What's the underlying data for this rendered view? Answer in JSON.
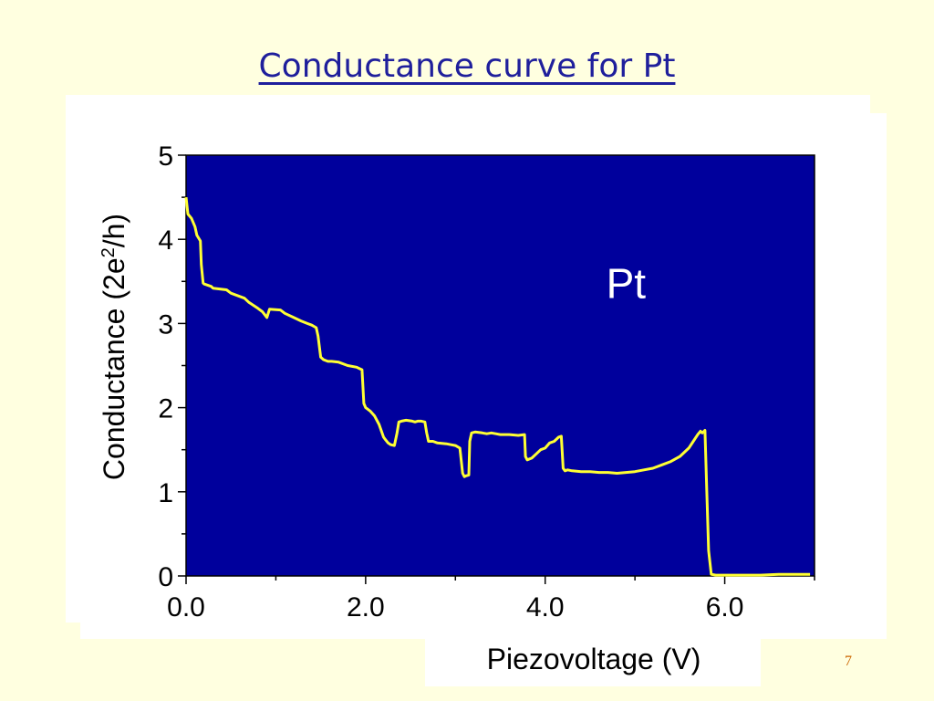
{
  "slide": {
    "title": "Conductance curve for Pt",
    "page_number": "7"
  },
  "colors": {
    "background": "#ffffe0",
    "title": "#1f1f9c",
    "plot_area": "#00009c",
    "curve": "#ffff33",
    "page_number": "#cc6600"
  },
  "chart_data": {
    "type": "line",
    "title": "",
    "xlabel": "Piezovoltage (V)",
    "ylabel_parts": [
      "Conductance (2e",
      "2",
      "/h)"
    ],
    "xlim": [
      0,
      7
    ],
    "ylim": [
      0,
      5
    ],
    "x_ticks": [
      0,
      2,
      4,
      6
    ],
    "x_tick_labels": [
      "0.0",
      "2.0",
      "4.0",
      "6.0"
    ],
    "y_ticks": [
      0,
      1,
      2,
      3,
      4,
      5
    ],
    "y_tick_labels": [
      "0",
      "1",
      "2",
      "3",
      "4",
      "5"
    ],
    "grid": false,
    "annotations": [
      {
        "text": "Pt",
        "x": 4.9,
        "y": 3.3
      }
    ],
    "series": [
      {
        "x": [
          0.0,
          0.02,
          0.06,
          0.1,
          0.12,
          0.16,
          0.17,
          0.19,
          0.2,
          0.28,
          0.3,
          0.45,
          0.5,
          0.65,
          0.7,
          0.8,
          0.85,
          0.88,
          0.9,
          0.93,
          1.05,
          1.1,
          1.2,
          1.28,
          1.35,
          1.4,
          1.45,
          1.47,
          1.5,
          1.53,
          1.58,
          1.62,
          1.7,
          1.8,
          1.9,
          1.96,
          1.98,
          2.0,
          2.05,
          2.1,
          2.15,
          2.2,
          2.22,
          2.25,
          2.28,
          2.32,
          2.35,
          2.37,
          2.4,
          2.45,
          2.52,
          2.55,
          2.58,
          2.62,
          2.66,
          2.68,
          2.7,
          2.75,
          2.8,
          2.9,
          2.95,
          3.0,
          3.05,
          3.08,
          3.1,
          3.12,
          3.15,
          3.16,
          3.18,
          3.22,
          3.3,
          3.35,
          3.4,
          3.45,
          3.5,
          3.6,
          3.7,
          3.77,
          3.78,
          3.8,
          3.85,
          3.9,
          3.95,
          4.0,
          4.05,
          4.1,
          4.15,
          4.18,
          4.2,
          4.22,
          4.25,
          4.3,
          4.4,
          4.5,
          4.6,
          4.7,
          4.8,
          4.9,
          5.0,
          5.1,
          5.2,
          5.3,
          5.4,
          5.5,
          5.6,
          5.65,
          5.7,
          5.73,
          5.75,
          5.78,
          5.8,
          5.82,
          5.85,
          5.9,
          6.0,
          6.2,
          6.4,
          6.6,
          6.8,
          6.95
        ],
        "y": [
          4.5,
          4.3,
          4.25,
          4.15,
          4.05,
          3.98,
          3.7,
          3.48,
          3.47,
          3.44,
          3.42,
          3.4,
          3.36,
          3.3,
          3.25,
          3.18,
          3.14,
          3.1,
          3.07,
          3.17,
          3.16,
          3.12,
          3.07,
          3.03,
          3.0,
          2.98,
          2.95,
          2.85,
          2.6,
          2.57,
          2.55,
          2.55,
          2.54,
          2.5,
          2.48,
          2.45,
          2.05,
          2.0,
          1.96,
          1.9,
          1.8,
          1.65,
          1.62,
          1.58,
          1.56,
          1.55,
          1.7,
          1.83,
          1.84,
          1.85,
          1.84,
          1.83,
          1.84,
          1.84,
          1.83,
          1.7,
          1.6,
          1.6,
          1.58,
          1.57,
          1.56,
          1.55,
          1.52,
          1.22,
          1.18,
          1.19,
          1.2,
          1.6,
          1.7,
          1.71,
          1.7,
          1.69,
          1.7,
          1.69,
          1.68,
          1.68,
          1.67,
          1.68,
          1.42,
          1.38,
          1.4,
          1.45,
          1.5,
          1.52,
          1.58,
          1.6,
          1.65,
          1.66,
          1.28,
          1.25,
          1.26,
          1.25,
          1.24,
          1.24,
          1.23,
          1.23,
          1.22,
          1.23,
          1.24,
          1.26,
          1.28,
          1.32,
          1.36,
          1.42,
          1.52,
          1.6,
          1.68,
          1.72,
          1.7,
          1.73,
          1.0,
          0.3,
          0.02,
          0.01,
          0.01,
          0.01,
          0.01,
          0.02,
          0.02,
          0.02
        ]
      }
    ]
  }
}
